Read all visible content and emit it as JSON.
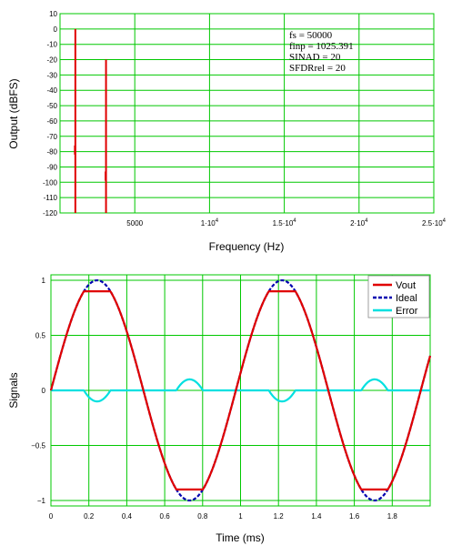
{
  "chart_data": [
    {
      "type": "line",
      "subtype": "spectrum",
      "xlabel": "Frequency (Hz)",
      "ylabel": "Output (dBFS)",
      "xlim": [
        0,
        25000
      ],
      "ylim": [
        -120,
        10
      ],
      "grid": true,
      "x_tick_labels": [
        "5000",
        "1·10",
        "1.5·10",
        "2·10",
        "2.5·10"
      ],
      "x_tick_exponents": [
        "",
        "4",
        "4",
        "4",
        "4"
      ],
      "x_tick_values": [
        5000,
        10000,
        15000,
        20000,
        25000
      ],
      "y_ticks": [
        10,
        0,
        -10,
        -20,
        -30,
        -40,
        -50,
        -60,
        -70,
        -80,
        -90,
        -100,
        -110,
        -120
      ],
      "line_color": "#e00000",
      "spikes": [
        {
          "freq": 1025.391,
          "level": 0
        },
        {
          "freq": 3076.172,
          "level": -20
        }
      ],
      "spike_glitches": [
        {
          "freq": 1025.391,
          "level": -76
        },
        {
          "freq": 3076.172,
          "level": -93
        }
      ],
      "annotations": [
        "fs = 50000",
        "finp = 1025.391",
        "SINAD = 20",
        "SFDRrel = 20"
      ]
    },
    {
      "type": "line",
      "xlabel": "Time (ms)",
      "ylabel": "Signals",
      "xlim": [
        0,
        2
      ],
      "ylim": [
        -1.05,
        1.05
      ],
      "grid": true,
      "x_ticks": [
        0,
        0.2,
        0.4,
        0.6,
        0.8,
        1,
        1.2,
        1.4,
        1.6,
        1.8
      ],
      "x_tick_labels": [
        "0",
        "0.2",
        "0.4",
        "0.6",
        "0.8",
        "1",
        "1.2",
        "1.4",
        "1.6",
        "1.8"
      ],
      "y_ticks": [
        1,
        0.5,
        0,
        -0.5,
        -1
      ],
      "y_tick_labels": [
        "1",
        "0.5",
        "0",
        "−0.5",
        "−1"
      ],
      "legend_position": "top-right",
      "signal_frequency_khz": 1.025391,
      "clip_level": 0.9,
      "series": [
        {
          "name": "Vout",
          "color": "#e00000",
          "style": "solid",
          "shape": "sine clipped at ±0.9"
        },
        {
          "name": "Ideal",
          "color": "#0000b0",
          "style": "dashed",
          "shape": "sine amplitude 1"
        },
        {
          "name": "Error",
          "color": "#00e0e0",
          "style": "solid",
          "shape": "Vout − Ideal"
        }
      ]
    }
  ]
}
